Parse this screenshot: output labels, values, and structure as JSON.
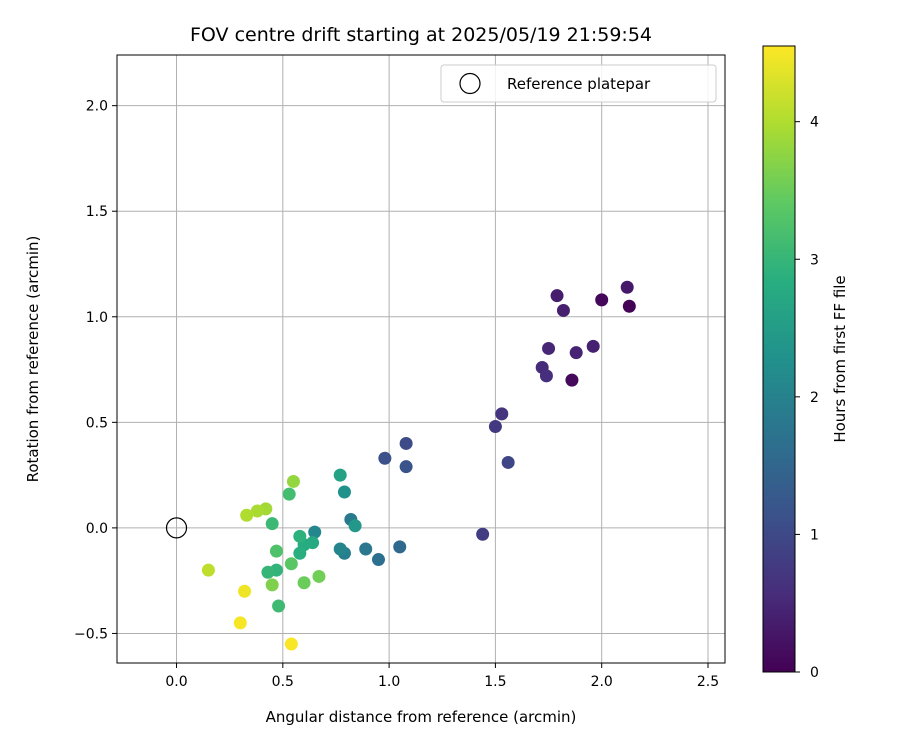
{
  "chart_data": {
    "type": "scatter",
    "title": "FOV centre drift starting at 2025/05/19 21:59:54",
    "xlabel": "Angular distance from reference (arcmin)",
    "ylabel": "Rotation from reference (arcmin)",
    "xlim": [
      -0.28,
      2.58
    ],
    "ylim": [
      -0.64,
      2.24
    ],
    "xticks": [
      0.0,
      0.5,
      1.0,
      1.5,
      2.0,
      2.5
    ],
    "xtick_labels": [
      "0.0",
      "0.5",
      "1.0",
      "1.5",
      "2.0",
      "2.5"
    ],
    "yticks": [
      -0.5,
      0.0,
      0.5,
      1.0,
      1.5,
      2.0
    ],
    "ytick_labels": [
      "−0.5",
      "0.0",
      "0.5",
      "1.0",
      "1.5",
      "2.0"
    ],
    "grid": true,
    "legend": {
      "position": "top-right",
      "entries": [
        "Reference platepar"
      ]
    },
    "reference_point": {
      "x": 0.0,
      "y": 0.0,
      "label": "Reference platepar"
    },
    "colorbar": {
      "label": "Hours from first FF file",
      "colormap": "viridis",
      "min": 0,
      "max": 4.55,
      "ticks": [
        0,
        1,
        2,
        3,
        4
      ],
      "tick_labels": [
        "0",
        "1",
        "2",
        "3",
        "4"
      ]
    },
    "points": [
      {
        "x": 2.13,
        "y": 1.05,
        "t": 0.02
      },
      {
        "x": 2.0,
        "y": 1.08,
        "t": 0.08
      },
      {
        "x": 1.86,
        "y": 0.7,
        "t": 0.12
      },
      {
        "x": 2.12,
        "y": 1.14,
        "t": 0.3
      },
      {
        "x": 1.79,
        "y": 1.1,
        "t": 0.35
      },
      {
        "x": 1.82,
        "y": 1.03,
        "t": 0.4
      },
      {
        "x": 1.96,
        "y": 0.86,
        "t": 0.42
      },
      {
        "x": 1.88,
        "y": 0.83,
        "t": 0.45
      },
      {
        "x": 1.75,
        "y": 0.85,
        "t": 0.48
      },
      {
        "x": 1.72,
        "y": 0.76,
        "t": 0.55
      },
      {
        "x": 1.74,
        "y": 0.72,
        "t": 0.6
      },
      {
        "x": 1.53,
        "y": 0.54,
        "t": 0.68
      },
      {
        "x": 1.5,
        "y": 0.48,
        "t": 0.75
      },
      {
        "x": 1.44,
        "y": -0.03,
        "t": 0.8
      },
      {
        "x": 1.56,
        "y": 0.31,
        "t": 0.95
      },
      {
        "x": 1.08,
        "y": 0.4,
        "t": 1.05
      },
      {
        "x": 0.98,
        "y": 0.33,
        "t": 1.1
      },
      {
        "x": 1.08,
        "y": 0.29,
        "t": 1.15
      },
      {
        "x": 1.05,
        "y": -0.09,
        "t": 1.55
      },
      {
        "x": 0.95,
        "y": -0.15,
        "t": 1.65
      },
      {
        "x": 0.89,
        "y": -0.1,
        "t": 1.8
      },
      {
        "x": 0.82,
        "y": 0.04,
        "t": 1.85
      },
      {
        "x": 0.79,
        "y": -0.12,
        "t": 1.95
      },
      {
        "x": 0.77,
        "y": -0.1,
        "t": 2.05
      },
      {
        "x": 0.65,
        "y": -0.02,
        "t": 2.1
      },
      {
        "x": 0.79,
        "y": 0.17,
        "t": 2.3
      },
      {
        "x": 0.84,
        "y": 0.01,
        "t": 2.4
      },
      {
        "x": 0.77,
        "y": 0.25,
        "t": 2.6
      },
      {
        "x": 0.64,
        "y": -0.07,
        "t": 2.75
      },
      {
        "x": 0.6,
        "y": -0.08,
        "t": 2.8
      },
      {
        "x": 0.58,
        "y": -0.12,
        "t": 2.85
      },
      {
        "x": 0.58,
        "y": -0.04,
        "t": 2.9
      },
      {
        "x": 0.47,
        "y": -0.2,
        "t": 2.95
      },
      {
        "x": 0.43,
        "y": -0.21,
        "t": 3.0
      },
      {
        "x": 0.45,
        "y": 0.02,
        "t": 3.05
      },
      {
        "x": 0.48,
        "y": -0.37,
        "t": 3.1
      },
      {
        "x": 0.53,
        "y": 0.16,
        "t": 3.15
      },
      {
        "x": 0.47,
        "y": -0.11,
        "t": 3.25
      },
      {
        "x": 0.54,
        "y": -0.17,
        "t": 3.35
      },
      {
        "x": 0.6,
        "y": -0.26,
        "t": 3.5
      },
      {
        "x": 0.67,
        "y": -0.23,
        "t": 3.55
      },
      {
        "x": 0.45,
        "y": -0.27,
        "t": 3.65
      },
      {
        "x": 0.55,
        "y": 0.22,
        "t": 3.8
      },
      {
        "x": 0.42,
        "y": 0.09,
        "t": 3.9
      },
      {
        "x": 0.38,
        "y": 0.08,
        "t": 3.95
      },
      {
        "x": 0.33,
        "y": 0.06,
        "t": 4.0
      },
      {
        "x": 0.15,
        "y": -0.2,
        "t": 4.1
      },
      {
        "x": 0.32,
        "y": -0.3,
        "t": 4.45
      },
      {
        "x": 0.3,
        "y": -0.45,
        "t": 4.5
      },
      {
        "x": 0.54,
        "y": -0.55,
        "t": 4.52
      }
    ]
  }
}
